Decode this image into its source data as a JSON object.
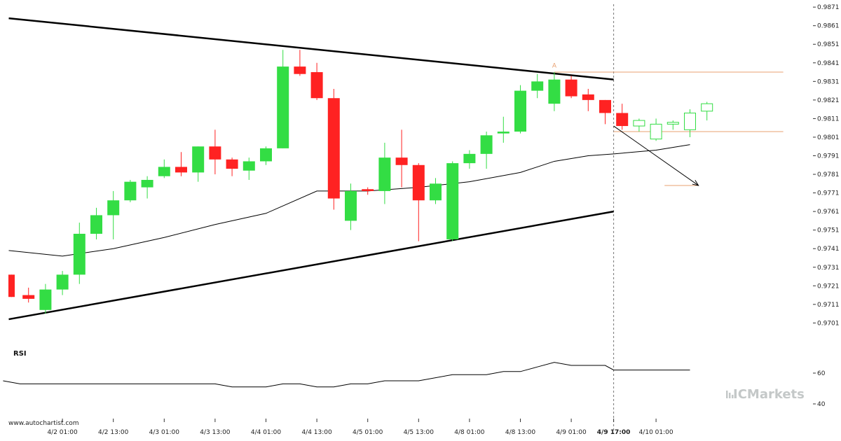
{
  "chart_data": {
    "type": "candlestick",
    "source_label": "www.autochartist.com",
    "brand": {
      "text": "ICMarkets",
      "color": "#c4c8c8"
    },
    "colors": {
      "up": "#33dd44",
      "down": "#ff2222",
      "projection": "#33dd44",
      "level": "#e8a070",
      "grid_tick": "#222222"
    },
    "y_ticks": [
      "0.9871",
      "0.9861",
      "0.9851",
      "0.9841",
      "0.9831",
      "0.9821",
      "0.9811",
      "0.9801",
      "0.9791",
      "0.9781",
      "0.9771",
      "0.9761",
      "0.9751",
      "0.9741",
      "0.9731",
      "0.9721",
      "0.9711",
      "0.9701"
    ],
    "ylim": [
      0.9697,
      0.9872
    ],
    "x_ticks": [
      "4/2 01:00",
      "4/2 13:00",
      "4/3 01:00",
      "4/3 13:00",
      "4/4 01:00",
      "4/4 13:00",
      "4/5 01:00",
      "4/5 13:00",
      "4/8 01:00",
      "4/8 13:00",
      "4/9 01:00",
      "4/9 17:00",
      "4/10 01:00"
    ],
    "x_tick_bars": [
      3,
      6,
      9,
      12,
      15,
      18,
      21,
      24,
      27,
      30,
      33,
      35.5,
      38
    ],
    "highlight_tick": "4/9 17:00",
    "current_bar": 35.5,
    "candles": [
      {
        "o": 0.9727,
        "h": 0.9727,
        "l": 0.9715,
        "c": 0.9715
      },
      {
        "o": 0.9716,
        "h": 0.972,
        "l": 0.9712,
        "c": 0.9714
      },
      {
        "o": 0.9708,
        "h": 0.9722,
        "l": 0.9706,
        "c": 0.9719
      },
      {
        "o": 0.9719,
        "h": 0.9729,
        "l": 0.9716,
        "c": 0.9727
      },
      {
        "o": 0.9727,
        "h": 0.9755,
        "l": 0.9722,
        "c": 0.9749
      },
      {
        "o": 0.9749,
        "h": 0.9763,
        "l": 0.9746,
        "c": 0.9759
      },
      {
        "o": 0.9759,
        "h": 0.9772,
        "l": 0.9746,
        "c": 0.9767
      },
      {
        "o": 0.9767,
        "h": 0.9778,
        "l": 0.9766,
        "c": 0.9777
      },
      {
        "o": 0.9774,
        "h": 0.978,
        "l": 0.9768,
        "c": 0.9778
      },
      {
        "o": 0.978,
        "h": 0.9789,
        "l": 0.9779,
        "c": 0.9785
      },
      {
        "o": 0.9785,
        "h": 0.9793,
        "l": 0.978,
        "c": 0.9782
      },
      {
        "o": 0.9782,
        "h": 0.9796,
        "l": 0.9777,
        "c": 0.9796
      },
      {
        "o": 0.9796,
        "h": 0.9805,
        "l": 0.9781,
        "c": 0.9789
      },
      {
        "o": 0.9789,
        "h": 0.979,
        "l": 0.978,
        "c": 0.9784
      },
      {
        "o": 0.9783,
        "h": 0.979,
        "l": 0.9778,
        "c": 0.9788
      },
      {
        "o": 0.9788,
        "h": 0.9796,
        "l": 0.9786,
        "c": 0.9795
      },
      {
        "o": 0.9795,
        "h": 0.9848,
        "l": 0.9795,
        "c": 0.9839
      },
      {
        "o": 0.9839,
        "h": 0.9848,
        "l": 0.9834,
        "c": 0.9835
      },
      {
        "o": 0.9836,
        "h": 0.9841,
        "l": 0.9821,
        "c": 0.9822
      },
      {
        "o": 0.9822,
        "h": 0.9827,
        "l": 0.9762,
        "c": 0.9768
      },
      {
        "o": 0.9756,
        "h": 0.9776,
        "l": 0.9751,
        "c": 0.9772
      },
      {
        "o": 0.9773,
        "h": 0.9774,
        "l": 0.977,
        "c": 0.9772
      },
      {
        "o": 0.9772,
        "h": 0.9798,
        "l": 0.9765,
        "c": 0.979
      },
      {
        "o": 0.979,
        "h": 0.9805,
        "l": 0.9774,
        "c": 0.9786
      },
      {
        "o": 0.9786,
        "h": 0.9787,
        "l": 0.9745,
        "c": 0.9767
      },
      {
        "o": 0.9767,
        "h": 0.9779,
        "l": 0.9765,
        "c": 0.9776
      },
      {
        "o": 0.9746,
        "h": 0.9788,
        "l": 0.9745,
        "c": 0.9787
      },
      {
        "o": 0.9787,
        "h": 0.9794,
        "l": 0.9784,
        "c": 0.9792
      },
      {
        "o": 0.9792,
        "h": 0.9804,
        "l": 0.9784,
        "c": 0.9802
      },
      {
        "o": 0.9803,
        "h": 0.9812,
        "l": 0.9798,
        "c": 0.9804
      },
      {
        "o": 0.9804,
        "h": 0.9829,
        "l": 0.9803,
        "c": 0.9826
      },
      {
        "o": 0.9826,
        "h": 0.9835,
        "l": 0.9822,
        "c": 0.9831
      },
      {
        "o": 0.9819,
        "h": 0.9836,
        "l": 0.9815,
        "c": 0.9832
      },
      {
        "o": 0.9832,
        "h": 0.9834,
        "l": 0.9822,
        "c": 0.9823
      },
      {
        "o": 0.9824,
        "h": 0.9827,
        "l": 0.9815,
        "c": 0.9821
      },
      {
        "o": 0.9821,
        "h": 0.9821,
        "l": 0.9808,
        "c": 0.9814
      },
      {
        "o": 0.9814,
        "h": 0.9819,
        "l": 0.9805,
        "c": 0.9807
      }
    ],
    "projection_candles": [
      {
        "o": 0.9807,
        "h": 0.9811,
        "l": 0.9804,
        "c": 0.981
      },
      {
        "o": 0.98,
        "h": 0.9811,
        "l": 0.9799,
        "c": 0.9808
      },
      {
        "o": 0.9808,
        "h": 0.981,
        "l": 0.9805,
        "c": 0.9809
      },
      {
        "o": 0.9805,
        "h": 0.9816,
        "l": 0.9801,
        "c": 0.9814
      },
      {
        "o": 0.9815,
        "h": 0.982,
        "l": 0.981,
        "c": 0.9819
      }
    ],
    "ma_line": [
      [
        0,
        0.974
      ],
      [
        3,
        0.9737
      ],
      [
        6,
        0.9741
      ],
      [
        9,
        0.9747
      ],
      [
        12,
        0.9754
      ],
      [
        15,
        0.976
      ],
      [
        18,
        0.9772
      ],
      [
        21,
        0.9772
      ],
      [
        24,
        0.9774
      ],
      [
        27,
        0.9777
      ],
      [
        30,
        0.9782
      ],
      [
        32,
        0.9788
      ],
      [
        34,
        0.9791
      ],
      [
        35.5,
        0.9792
      ],
      [
        38,
        0.9794
      ],
      [
        40,
        0.9797
      ]
    ],
    "channel_upper": [
      [
        0,
        0.9865
      ],
      [
        35.5,
        0.9832
      ]
    ],
    "channel_lower": [
      [
        0,
        0.9703
      ],
      [
        35.5,
        0.9761
      ]
    ],
    "forecast_arrow": [
      [
        35.5,
        0.9807
      ],
      [
        40.5,
        0.9775
      ]
    ],
    "levels": [
      {
        "y": 0.9836,
        "x0": 32,
        "x1": 45.5
      },
      {
        "y": 0.9804,
        "x0": 35.5,
        "x1": 45.5
      },
      {
        "y": 0.9775,
        "x0": 38.5,
        "x1": 40.5
      }
    ],
    "pattern_point": {
      "label": "A",
      "bar": 32,
      "y": 0.9838
    },
    "rsi": {
      "title": "RSI",
      "y_ticks": [
        "60",
        "40"
      ],
      "ylim": [
        37,
        72
      ],
      "points": [
        [
          -0.5,
          55
        ],
        [
          0.5,
          53
        ],
        [
          12,
          53
        ],
        [
          13,
          51
        ],
        [
          15,
          51
        ],
        [
          16,
          53
        ],
        [
          17,
          53
        ],
        [
          18,
          51
        ],
        [
          19,
          51
        ],
        [
          20,
          53
        ],
        [
          21,
          53
        ],
        [
          22,
          55
        ],
        [
          24,
          55
        ],
        [
          26,
          59
        ],
        [
          28,
          59
        ],
        [
          29,
          61
        ],
        [
          30,
          61
        ],
        [
          31,
          64
        ],
        [
          32,
          67
        ],
        [
          33,
          65
        ],
        [
          35,
          65
        ],
        [
          35.5,
          62
        ],
        [
          40,
          62
        ]
      ]
    }
  }
}
